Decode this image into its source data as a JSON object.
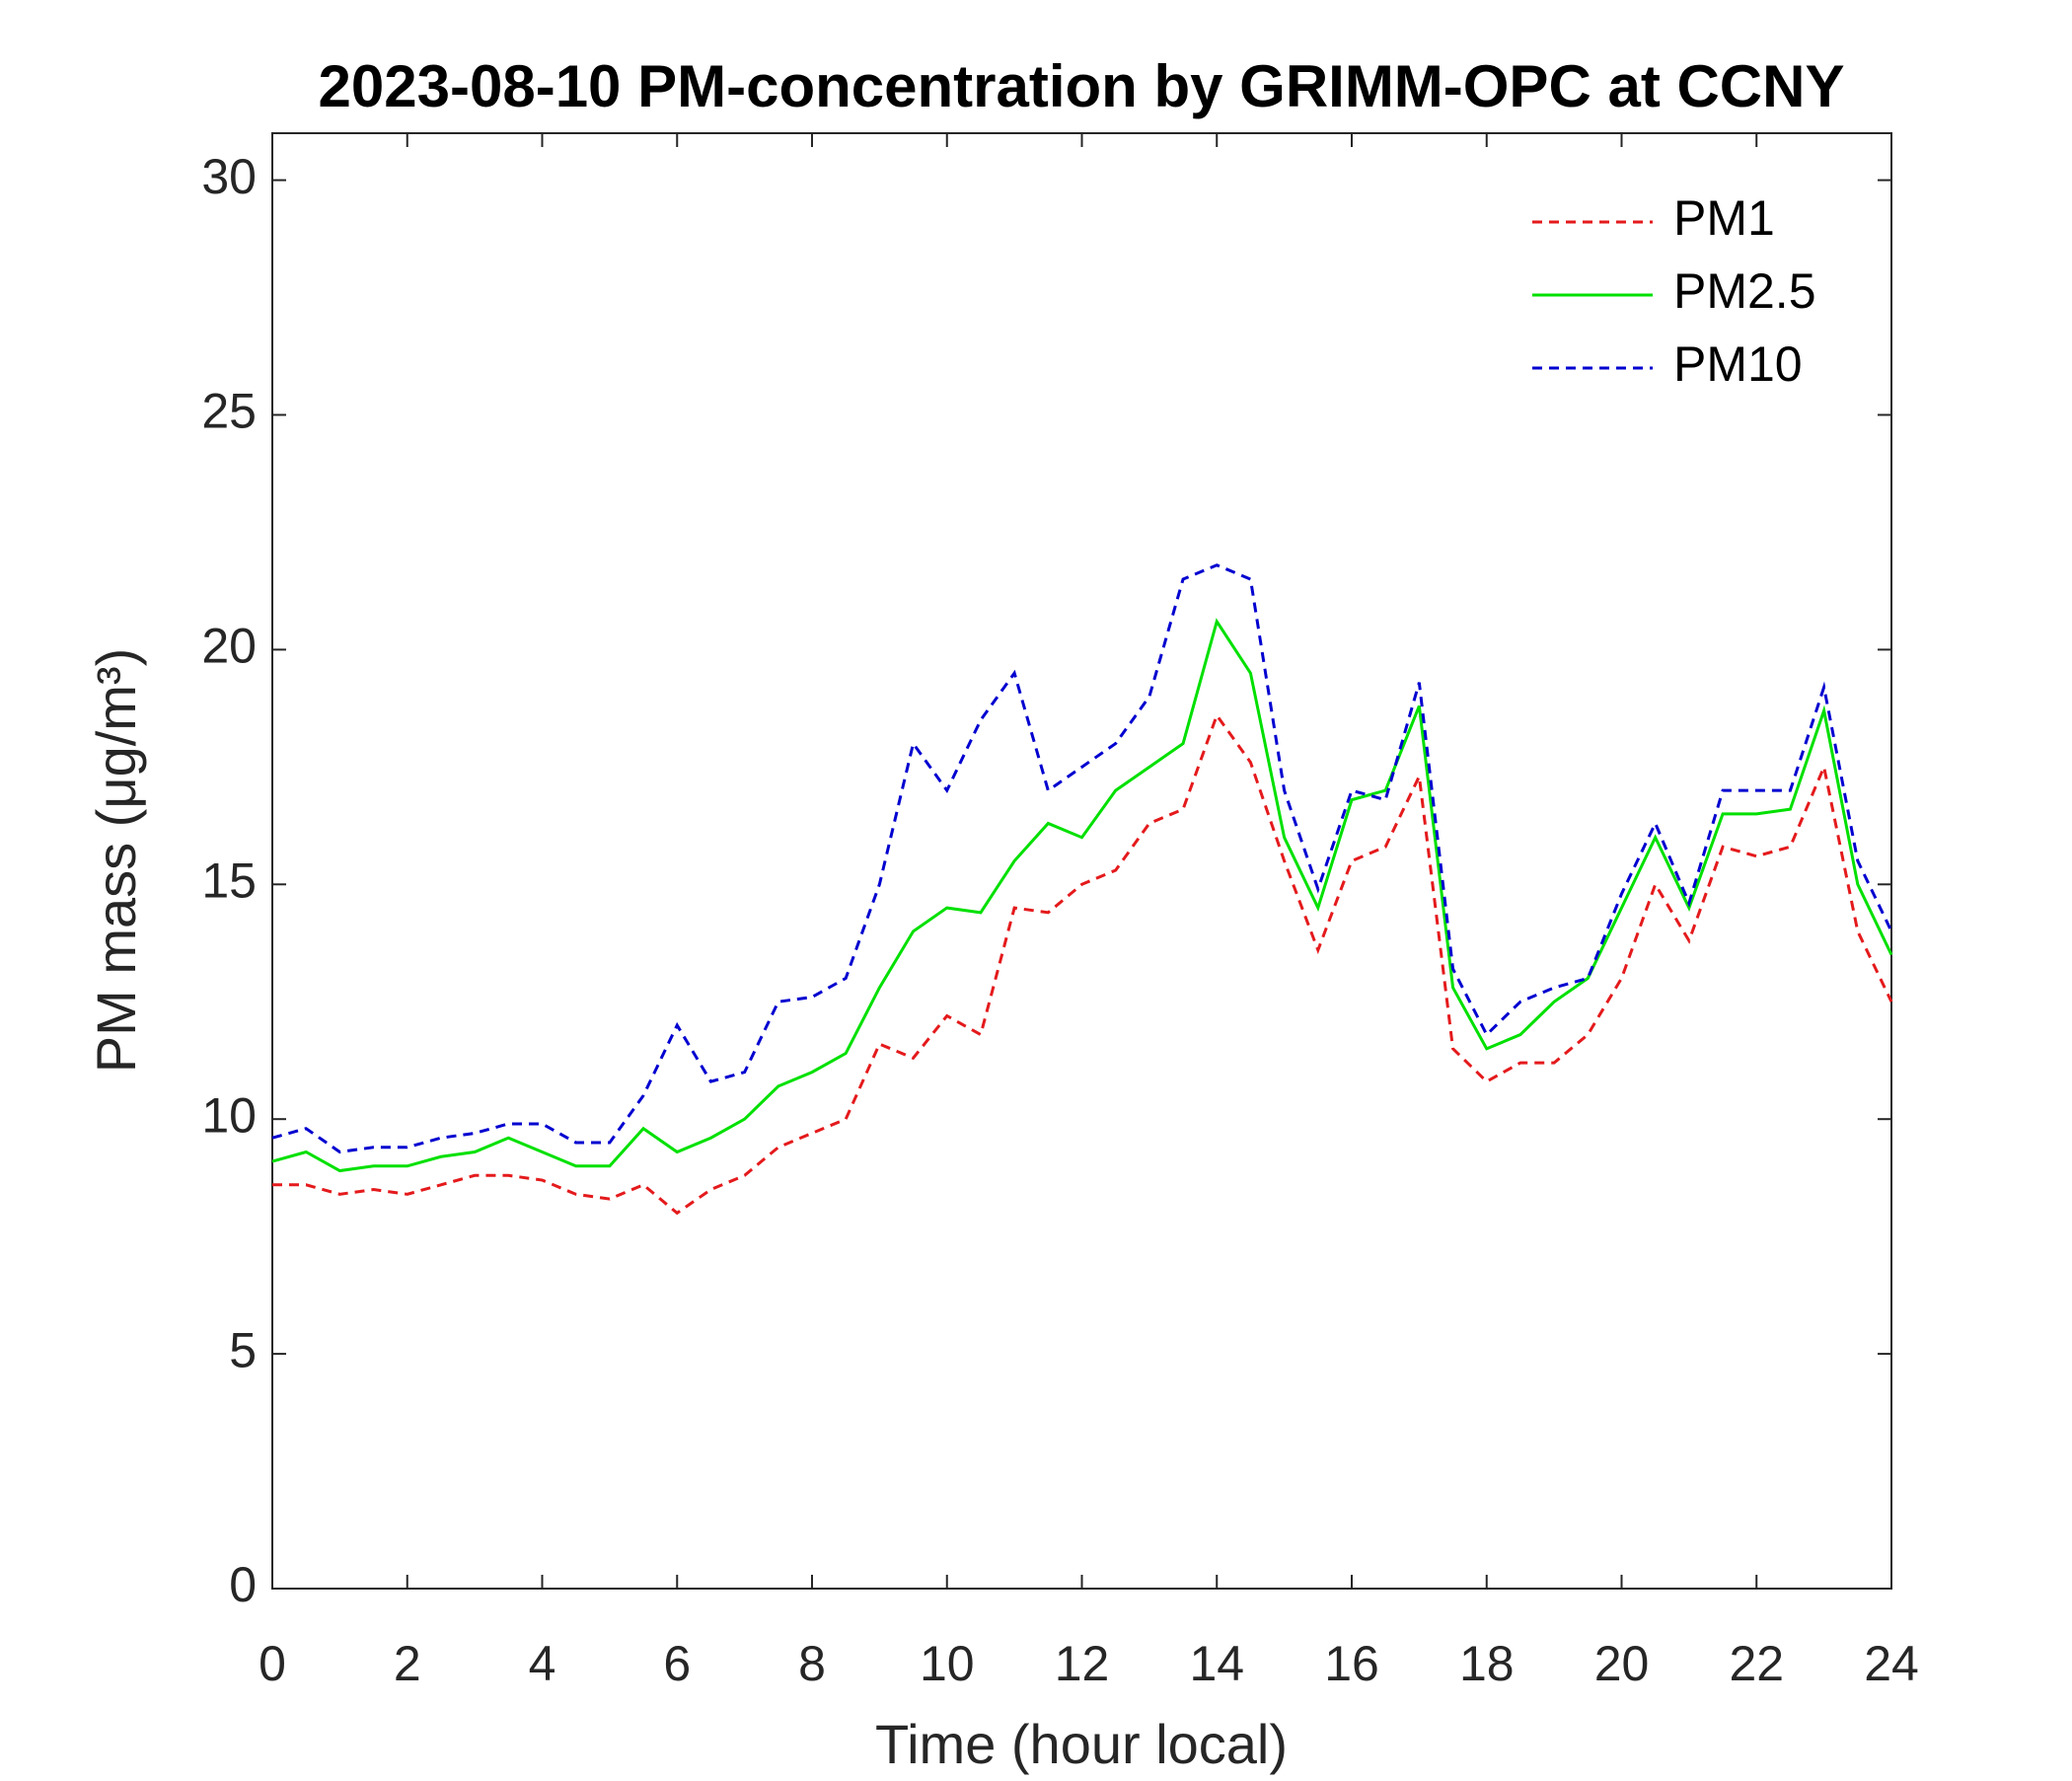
{
  "chart_data": {
    "type": "line",
    "title": "2023-08-10 PM-concentration by GRIMM-OPC at CCNY",
    "x_label": "Time (hour local)",
    "y_label": "PM mass (μg/m³)",
    "x": [
      0,
      0.5,
      1,
      1.5,
      2,
      2.5,
      3,
      3.5,
      4,
      4.5,
      5,
      5.5,
      6,
      6.5,
      7,
      7.5,
      8,
      8.5,
      9,
      9.5,
      10,
      10.5,
      11,
      11.5,
      12,
      12.5,
      13,
      13.5,
      14,
      14.5,
      15,
      15.5,
      16,
      16.5,
      17,
      17.5,
      18,
      18.5,
      19,
      19.5,
      20,
      20.5,
      21,
      21.5,
      22,
      22.5,
      23,
      23.5,
      24
    ],
    "series": [
      {
        "name": "PM1",
        "color": "#e41a1c",
        "dash": "dashed",
        "values": [
          8.6,
          8.6,
          8.4,
          8.5,
          8.4,
          8.6,
          8.8,
          8.8,
          8.7,
          8.4,
          8.3,
          8.6,
          8.0,
          8.5,
          8.8,
          9.4,
          9.7,
          10.0,
          11.6,
          11.3,
          12.2,
          11.8,
          14.5,
          14.4,
          15.0,
          15.3,
          16.3,
          16.6,
          18.6,
          17.6,
          15.5,
          13.6,
          15.5,
          15.8,
          17.3,
          11.5,
          10.8,
          11.2,
          11.2,
          11.8,
          13.0,
          15.0,
          13.8,
          15.8,
          15.6,
          15.8,
          17.5,
          14.0,
          12.5
        ]
      },
      {
        "name": "PM2.5",
        "color": "#00e000",
        "dash": "solid",
        "values": [
          9.1,
          9.3,
          8.9,
          9.0,
          9.0,
          9.2,
          9.3,
          9.6,
          9.3,
          9.0,
          9.0,
          9.8,
          9.3,
          9.6,
          10.0,
          10.7,
          11.0,
          11.4,
          12.8,
          14.0,
          14.5,
          14.4,
          15.5,
          16.3,
          16.0,
          17.0,
          17.5,
          18.0,
          20.6,
          19.5,
          16.0,
          14.5,
          16.8,
          17.0,
          18.8,
          12.8,
          11.5,
          11.8,
          12.5,
          13.0,
          14.5,
          16.0,
          14.5,
          16.5,
          16.5,
          16.6,
          18.7,
          15.0,
          13.5
        ]
      },
      {
        "name": "PM10",
        "color": "#0000d0",
        "dash": "dashed",
        "values": [
          9.6,
          9.8,
          9.3,
          9.4,
          9.4,
          9.6,
          9.7,
          9.9,
          9.9,
          9.5,
          9.5,
          10.5,
          12.0,
          10.8,
          11.0,
          12.5,
          12.6,
          13.0,
          15.0,
          18.0,
          17.0,
          18.5,
          19.5,
          17.0,
          17.5,
          18.0,
          19.0,
          21.5,
          21.8,
          21.5,
          17.0,
          14.9,
          17.0,
          16.8,
          19.3,
          13.2,
          11.8,
          12.5,
          12.8,
          13.0,
          14.8,
          16.3,
          14.6,
          17.0,
          17.0,
          17.0,
          19.2,
          15.5,
          14.0
        ]
      }
    ],
    "xlim": [
      0,
      24
    ],
    "xticks": [
      0,
      2,
      4,
      6,
      8,
      10,
      12,
      14,
      16,
      18,
      20,
      22,
      24
    ],
    "ylim": [
      0,
      31
    ],
    "yticks": [
      0,
      5,
      10,
      15,
      20,
      25,
      30
    ],
    "grid": false,
    "legend": "upper right"
  }
}
